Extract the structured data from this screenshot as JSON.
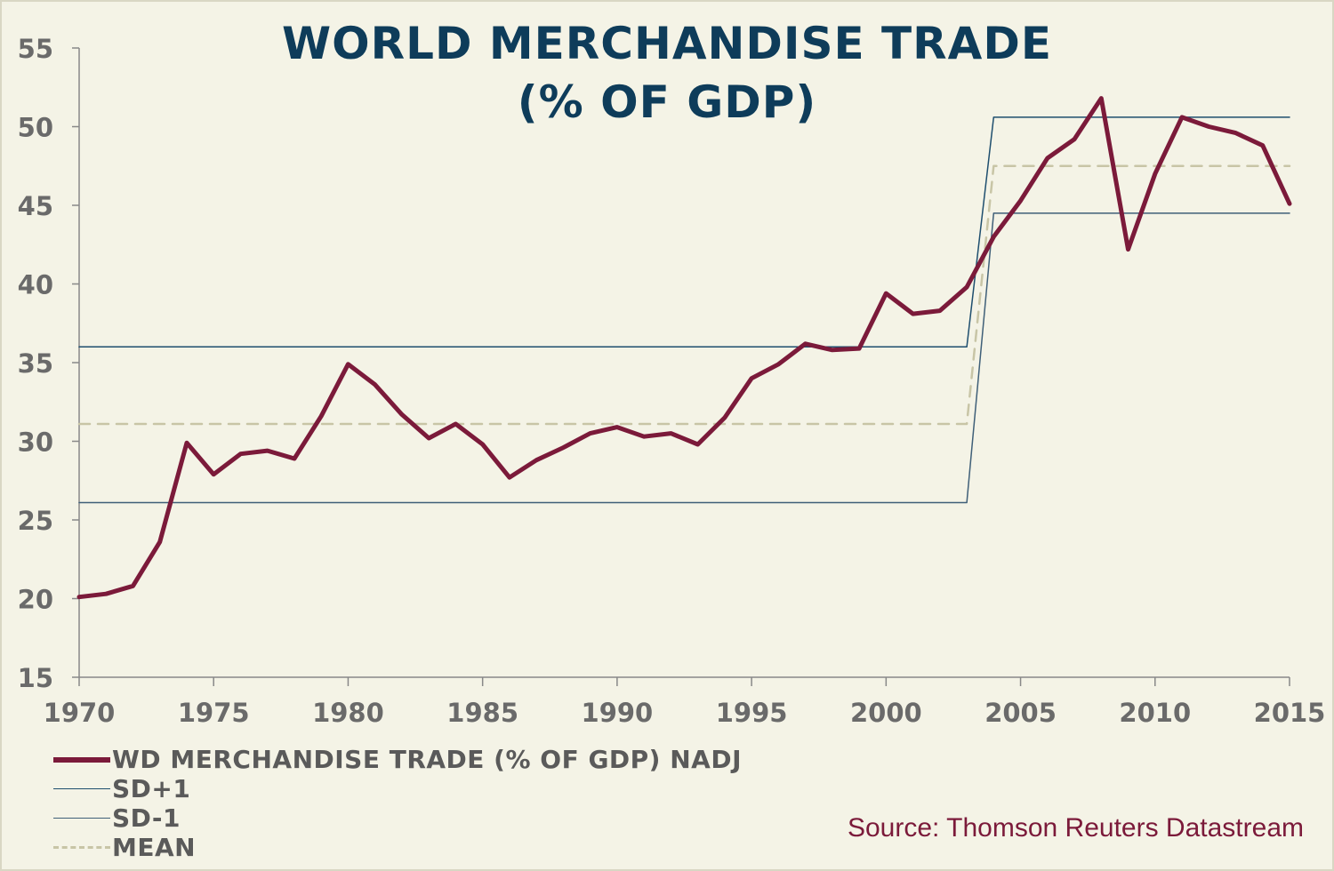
{
  "title_line1": "WORLD MERCHANDISE TRADE",
  "title_line2": "(% OF GDP)",
  "source": "Source: Thomson Reuters Datastream",
  "colors": {
    "main": "#7b1a3a",
    "sd_plus": "#1e4e6e",
    "sd_minus": "#3f5f78",
    "mean": "#c8c5a6",
    "axis": "#888888",
    "tick_text": "#6a6a6a"
  },
  "chart_data": {
    "type": "line",
    "title": "WORLD MERCHANDISE TRADE (% OF GDP)",
    "xlim": [
      1970,
      2015
    ],
    "ylim": [
      15,
      55
    ],
    "x_ticks": [
      1970,
      1975,
      1980,
      1985,
      1990,
      1995,
      2000,
      2005,
      2010,
      2015
    ],
    "y_ticks": [
      15,
      20,
      25,
      30,
      35,
      40,
      45,
      50,
      55
    ],
    "grid": false,
    "legend_position": "bottom-left",
    "series": [
      {
        "name": "WD MERCHANDISE TRADE (% OF GDP) NADJ",
        "style": "thick-solid",
        "x": [
          1970,
          1971,
          1972,
          1973,
          1974,
          1975,
          1976,
          1977,
          1978,
          1979,
          1980,
          1981,
          1982,
          1983,
          1984,
          1985,
          1986,
          1987,
          1988,
          1989,
          1990,
          1991,
          1992,
          1993,
          1994,
          1995,
          1996,
          1997,
          1998,
          1999,
          2000,
          2001,
          2002,
          2003,
          2004,
          2005,
          2006,
          2007,
          2008,
          2009,
          2010,
          2011,
          2012,
          2013,
          2014,
          2015
        ],
        "y": [
          20.1,
          20.3,
          20.8,
          23.6,
          29.9,
          27.9,
          29.2,
          29.4,
          28.9,
          31.6,
          34.9,
          33.6,
          31.7,
          30.2,
          31.1,
          29.8,
          27.7,
          28.8,
          29.6,
          30.5,
          30.9,
          30.3,
          30.5,
          29.8,
          31.5,
          34.0,
          34.9,
          36.2,
          35.8,
          35.9,
          39.4,
          38.1,
          38.3,
          39.8,
          43.0,
          45.3,
          48.0,
          49.2,
          51.8,
          42.2,
          47.0,
          50.6,
          50.0,
          49.6,
          48.8,
          45.1
        ]
      },
      {
        "name": "SD+1",
        "style": "thin-solid",
        "x": [
          1970,
          2003,
          2004,
          2015
        ],
        "y": [
          36.0,
          36.0,
          50.6,
          50.6
        ]
      },
      {
        "name": "SD-1",
        "style": "thin-solid",
        "x": [
          1970,
          2003,
          2004,
          2015
        ],
        "y": [
          26.1,
          26.1,
          44.5,
          44.5
        ]
      },
      {
        "name": "MEAN",
        "style": "dashed",
        "x": [
          1970,
          2003,
          2004,
          2015
        ],
        "y": [
          31.1,
          31.1,
          47.5,
          47.5
        ]
      }
    ]
  }
}
